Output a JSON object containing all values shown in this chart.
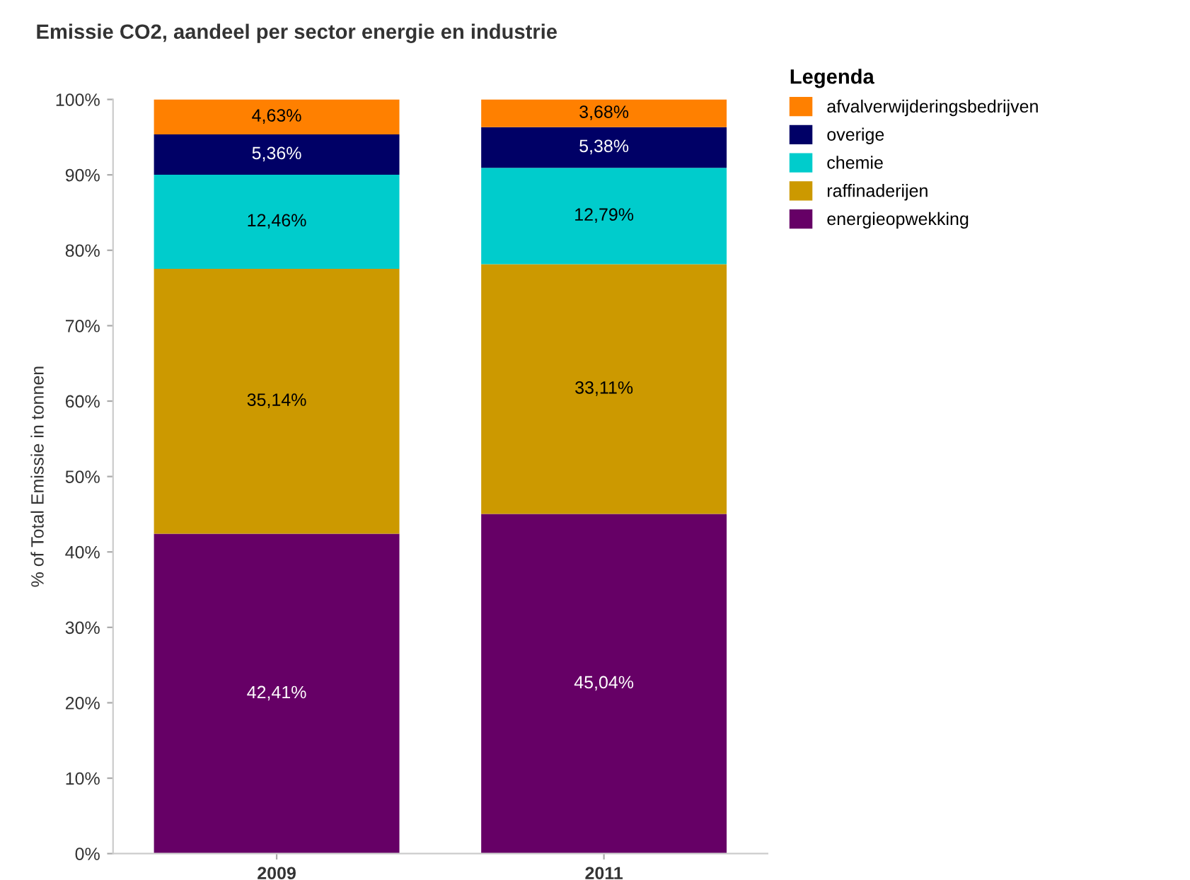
{
  "chart_data": {
    "type": "bar",
    "stacked": true,
    "title": "Emissie CO2, aandeel per sector energie en industrie",
    "ylabel": "% of Total Emissie in tonnen",
    "legend_title": "Legenda",
    "legend": "right",
    "grid": false,
    "categories": [
      "2009",
      "2011"
    ],
    "series": [
      {
        "name": "energieopwekking",
        "color": "#660066",
        "values": [
          42.41,
          45.04
        ],
        "value_labels": [
          "42,41%",
          "45,04%"
        ]
      },
      {
        "name": "raffinaderijen",
        "color": "#cc9900",
        "values": [
          35.14,
          33.11
        ],
        "value_labels": [
          "35,14%",
          "33,11%"
        ]
      },
      {
        "name": "chemie",
        "color": "#00cccc",
        "values": [
          12.46,
          12.79
        ],
        "value_labels": [
          "12,46%",
          "12,79%"
        ]
      },
      {
        "name": "overige",
        "color": "#000066",
        "values": [
          5.36,
          5.38
        ],
        "value_labels": [
          "5,36%",
          "5,38%"
        ]
      },
      {
        "name": "afvalverwijderingsbedrijven",
        "color": "#ff8000",
        "values": [
          4.63,
          3.68
        ],
        "value_labels": [
          "4,63%",
          "3,68%"
        ]
      }
    ],
    "ylim": [
      0,
      100
    ],
    "yticks": [
      {
        "value": 0,
        "label": "0%"
      },
      {
        "value": 10,
        "label": "10%"
      },
      {
        "value": 20,
        "label": "20%"
      },
      {
        "value": 30,
        "label": "30%"
      },
      {
        "value": 40,
        "label": "40%"
      },
      {
        "value": 50,
        "label": "50%"
      },
      {
        "value": 60,
        "label": "60%"
      },
      {
        "value": 70,
        "label": "70%"
      },
      {
        "value": 80,
        "label": "80%"
      },
      {
        "value": 90,
        "label": "90%"
      },
      {
        "value": 100,
        "label": "100%"
      }
    ]
  }
}
